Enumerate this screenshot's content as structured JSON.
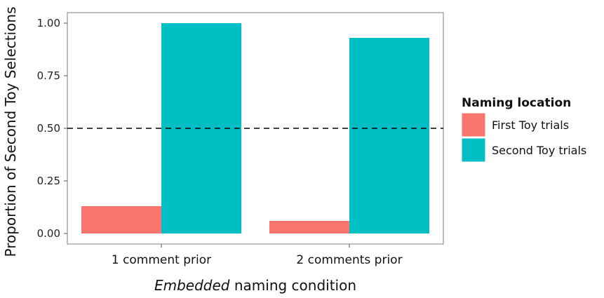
{
  "chart_data": {
    "type": "bar",
    "categories": [
      "1 comment prior",
      "2 comments prior"
    ],
    "series": [
      {
        "name": "First Toy trials",
        "values": [
          0.13,
          0.06
        ],
        "color": "#F8766D"
      },
      {
        "name": "Second Toy trials",
        "values": [
          1.0,
          0.93
        ],
        "color": "#00BFC4"
      }
    ],
    "xlabel_emphasis": "Embedded",
    "xlabel_rest": " naming condition",
    "ylabel": "Proportion of Second Toy Selections",
    "ylim": [
      0,
      1.05
    ],
    "yticks": [
      0.0,
      0.25,
      0.5,
      0.75,
      1.0
    ],
    "ytick_labels": [
      "0.00",
      "0.25",
      "0.50",
      "0.75",
      "1.00"
    ],
    "reference_line": {
      "y": 0.5,
      "style": "dashed"
    },
    "legend": {
      "title": "Naming location",
      "position": "right"
    },
    "grid": false,
    "panel_border": true
  }
}
